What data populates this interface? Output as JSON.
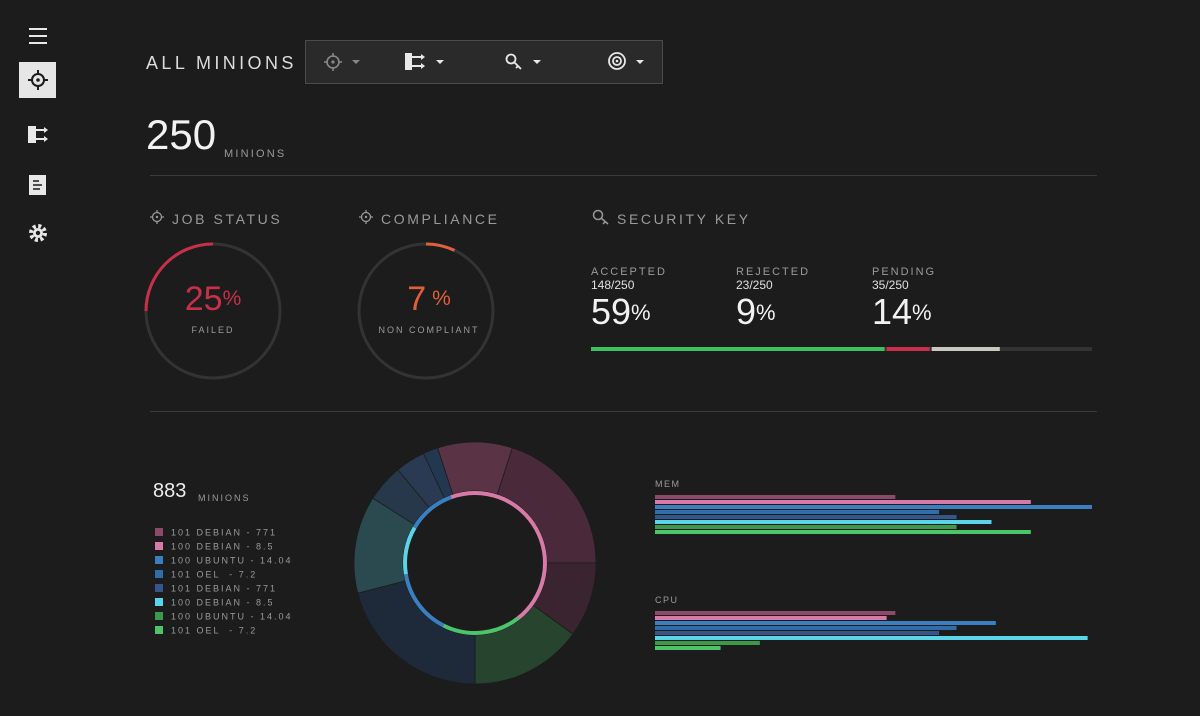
{
  "header": {
    "title": "ALL MINIONS"
  },
  "summary": {
    "count": 250,
    "unit": "MINIONS"
  },
  "job_status": {
    "title": "JOB STATUS",
    "value": 25,
    "unit": "%",
    "label": "FAILED",
    "color": "#c8304a"
  },
  "compliance": {
    "title": "COMPLIANCE",
    "value": 7,
    "unit": "%",
    "label": "NON COMPLIANT",
    "color": "#e0603a"
  },
  "security_key": {
    "title": "SECURITY KEY",
    "xlim": [
      0,
      100
    ],
    "items": [
      {
        "label": "ACCEPTED",
        "count": "148/250",
        "value": 59,
        "unit": "%",
        "color": "#3cc060"
      },
      {
        "label": "REJECTED",
        "count": "23/250",
        "value": 9,
        "unit": "%",
        "color": "#c8304a"
      },
      {
        "label": "PENDING",
        "count": "35/250",
        "value": 14,
        "unit": "%",
        "color": "#c8c8c0"
      }
    ]
  },
  "distribution": {
    "count": 883,
    "unit": "MINIONS",
    "legend": [
      {
        "label": "101 DEBIAN - 771",
        "color": "#8a4a68"
      },
      {
        "label": "100 DEBIAN - 8.5",
        "color": "#d87aa8"
      },
      {
        "label": "100 UBUNTU - 14.04",
        "color": "#3a7fc0"
      },
      {
        "label": "101 OEL  - 7.2",
        "color": "#2f6ea8"
      },
      {
        "label": "101 DEBIAN - 771",
        "color": "#34568a"
      },
      {
        "label": "100 DEBIAN - 8.5",
        "color": "#5ad4e8"
      },
      {
        "label": "100 UBUNTU - 14.04",
        "color": "#3a9a4a"
      },
      {
        "label": "101 OEL  - 7.2",
        "color": "#4cc46a"
      }
    ],
    "outer_ring": {
      "values": [
        10,
        20,
        10,
        15,
        21,
        13,
        5,
        4,
        2
      ],
      "colors": [
        "#5a3444",
        "#4a2a3a",
        "#3a2430",
        "#26442e",
        "#1e2a3a",
        "#2a4a50",
        "#26384a",
        "#2a3a52",
        "#223850"
      ]
    },
    "inner_ring": {
      "values": [
        45,
        18,
        15,
        11,
        11
      ],
      "colors": [
        "#d87aa8",
        "#4cc46a",
        "#3a7fc0",
        "#5ad4e8",
        "#3a7fc0"
      ]
    }
  },
  "mem": {
    "title": "MEM",
    "xlim": [
      0,
      100
    ],
    "values": [
      55,
      86,
      100,
      65,
      69,
      77,
      69,
      86
    ],
    "colors": [
      "#8a4a68",
      "#d87aa8",
      "#3a7fc0",
      "#2f6ea8",
      "#34568a",
      "#5ad4e8",
      "#3a9a4a",
      "#4cc46a"
    ]
  },
  "cpu": {
    "title": "CPU",
    "xlim": [
      0,
      100
    ],
    "values": [
      55,
      53,
      78,
      69,
      65,
      99,
      24,
      15
    ],
    "colors": [
      "#8a4a68",
      "#d87aa8",
      "#3a7fc0",
      "#2f6ea8",
      "#34568a",
      "#5ad4e8",
      "#3a9a4a",
      "#4cc46a"
    ]
  }
}
